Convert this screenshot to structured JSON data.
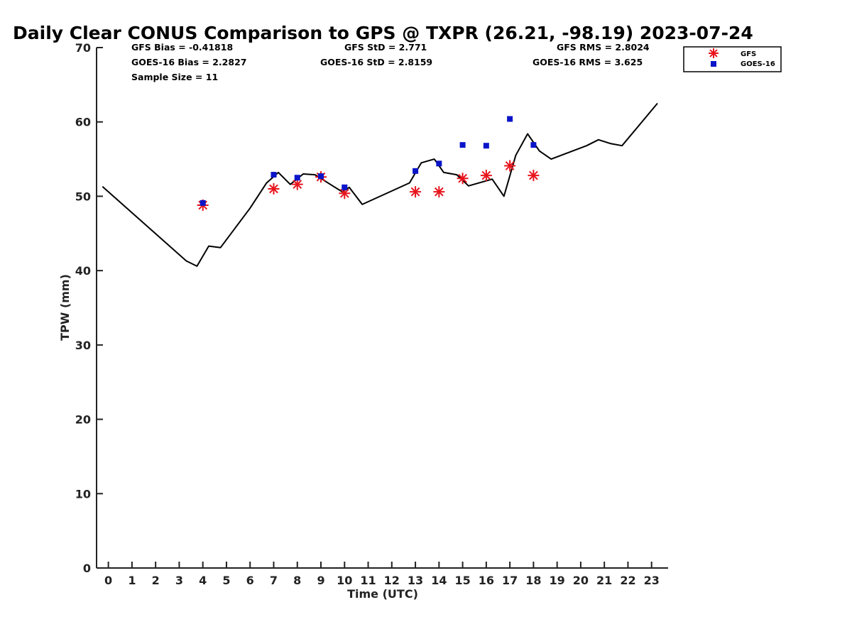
{
  "chart_data": {
    "type": "line",
    "title": "Daily Clear CONUS Comparison to GPS @ TXPR (26.21, -98.19) 2023-07-24",
    "xlabel": "Time (UTC)",
    "ylabel": "TPW (mm)",
    "xlim": [
      -0.5,
      23.7
    ],
    "ylim": [
      0,
      70
    ],
    "xticks": [
      0,
      1,
      2,
      3,
      4,
      5,
      6,
      7,
      8,
      9,
      10,
      11,
      12,
      13,
      14,
      15,
      16,
      17,
      18,
      19,
      20,
      21,
      22,
      23
    ],
    "yticks": [
      0,
      10,
      20,
      30,
      40,
      50,
      60,
      70
    ],
    "grid": false,
    "legend_position": "top-right",
    "stats": {
      "gfs_bias": "GFS Bias = -0.41818",
      "gfs_std": "GFS StD = 2.771",
      "gfs_rms": "GFS RMS = 2.8024",
      "goes_bias": "GOES-16 Bias = 2.2827",
      "goes_std": "GOES-16 StD = 2.8159",
      "goes_rms": "GOES-16 RMS = 3.625",
      "sample_size": "Sample Size = 11"
    },
    "series": [
      {
        "kind": "line",
        "color": "#000000",
        "x": [
          -0.25,
          3.3,
          3.75,
          4.25,
          4.75,
          6.0,
          6.7,
          7.2,
          7.7,
          8.25,
          8.75,
          9.5,
          9.9,
          10.2,
          10.75,
          12.75,
          13.25,
          13.8,
          14.2,
          14.75,
          15.25,
          16.25,
          16.75,
          17.25,
          17.75,
          18.25,
          18.75,
          20.25,
          20.75,
          21.25,
          21.75,
          23.25
        ],
        "y": [
          51.3,
          41.3,
          40.6,
          43.3,
          43.1,
          48.4,
          51.8,
          53.2,
          51.6,
          53.0,
          52.9,
          51.4,
          50.6,
          51.2,
          48.9,
          51.8,
          54.5,
          55.0,
          53.2,
          52.9,
          51.4,
          52.3,
          50.0,
          55.5,
          58.4,
          56.1,
          55.0,
          56.8,
          57.6,
          57.1,
          56.8,
          62.5
        ]
      },
      {
        "name": "GFS",
        "kind": "marker",
        "marker": "asterisk",
        "color": "#e8141c",
        "x": [
          4,
          7,
          8,
          9,
          10,
          13,
          14,
          15,
          16,
          17,
          18
        ],
        "y": [
          48.8,
          51.0,
          51.6,
          52.6,
          50.4,
          50.6,
          50.6,
          52.4,
          52.8,
          54.1,
          52.8
        ]
      },
      {
        "name": "GOES-16",
        "kind": "marker",
        "marker": "square",
        "color": "#0a14c8",
        "x": [
          4,
          7,
          8,
          9,
          10,
          13,
          14,
          15,
          16,
          17,
          18
        ],
        "y": [
          49.1,
          52.9,
          52.5,
          52.7,
          51.2,
          53.4,
          54.4,
          56.9,
          56.8,
          60.4,
          56.9
        ]
      }
    ]
  }
}
